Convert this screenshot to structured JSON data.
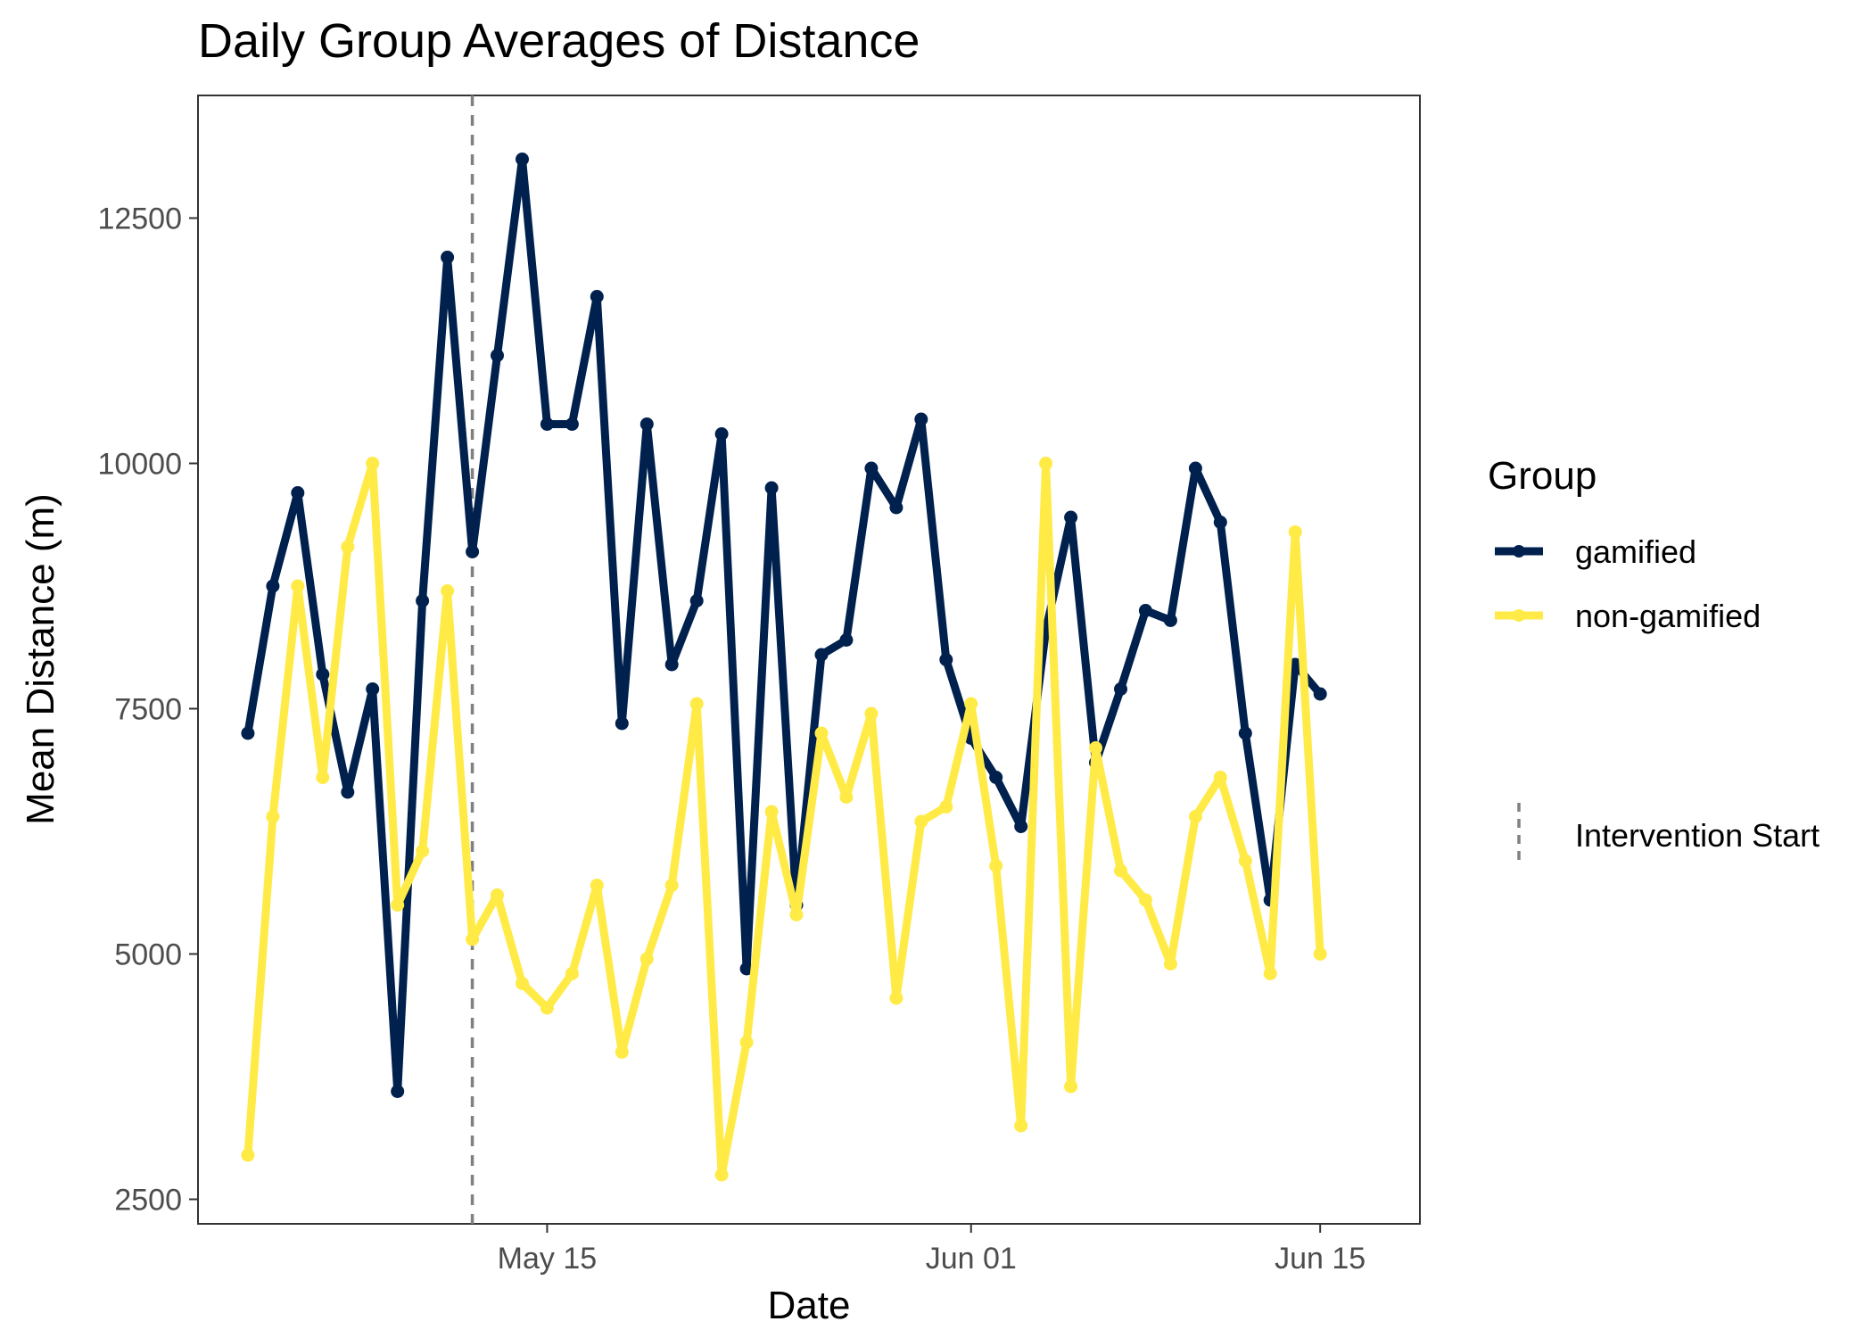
{
  "chart_data": {
    "type": "line",
    "title": "Daily Group Averages of Distance",
    "xlabel": "Date",
    "ylabel": "Mean Distance (m)",
    "x_start_date": "2025-05-03",
    "xlim": [
      "2025-05-01",
      "2025-06-19"
    ],
    "ylim": [
      2250,
      13750
    ],
    "x_ticks": [
      {
        "label": "May 15",
        "date": "2025-05-15"
      },
      {
        "label": "Jun 01",
        "date": "2025-06-01"
      },
      {
        "label": "Jun 15",
        "date": "2025-06-15"
      }
    ],
    "y_ticks": [
      2500,
      5000,
      7500,
      10000,
      12500
    ],
    "grid": false,
    "legend": {
      "title": "Group",
      "placement": "right",
      "intervention_label": "Intervention Start"
    },
    "intervention": {
      "date": "2025-05-12",
      "label": "Intervention Start"
    },
    "series": [
      {
        "name": "gamified",
        "color": "#00204d",
        "values": [
          7250,
          8750,
          9700,
          7850,
          6650,
          7700,
          3600,
          8600,
          12100,
          9100,
          11100,
          13100,
          10400,
          10400,
          11700,
          7350,
          10400,
          7950,
          8600,
          10300,
          4850,
          9750,
          5500,
          8050,
          8200,
          9950,
          9550,
          10450,
          8000,
          7200,
          6800,
          6300,
          8300,
          9450,
          6950,
          7700,
          8500,
          8400,
          9950,
          9400,
          7250,
          5550,
          7950,
          7650
        ]
      },
      {
        "name": "non-gamified",
        "color": "#ffea46",
        "values": [
          2950,
          6400,
          8750,
          6800,
          9150,
          10000,
          5500,
          6050,
          8700,
          5150,
          5600,
          4700,
          4450,
          4800,
          5700,
          4000,
          4950,
          5700,
          7550,
          2750,
          4100,
          6450,
          5400,
          7250,
          6600,
          7450,
          4550,
          6350,
          6500,
          7550,
          5900,
          3250,
          10000,
          3650,
          7100,
          5850,
          5550,
          4900,
          6400,
          6800,
          5950,
          4800,
          9300,
          5000
        ]
      }
    ]
  }
}
